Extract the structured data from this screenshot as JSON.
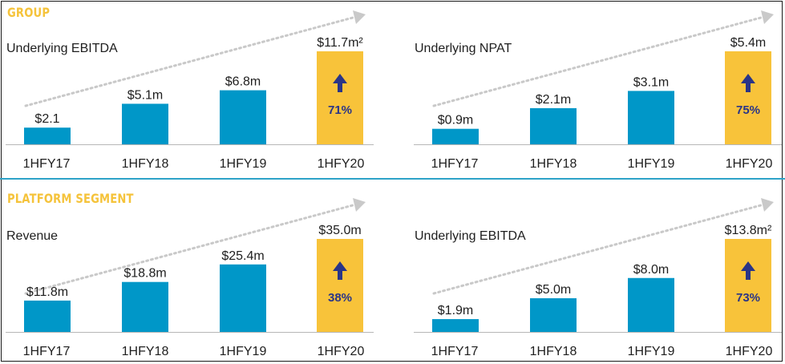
{
  "colors": {
    "bar": "#0097c8",
    "highlight": "#f8c33a",
    "arrow": "#2a3587",
    "section": "#f5c33b",
    "divider": "#2ea3c8",
    "baseline": "#b7b7b7",
    "dotted": "#c9c9c9",
    "text": "#1e1e1e"
  },
  "sections": [
    {
      "label": "GROUP"
    },
    {
      "label": "PLATFORM SEGMENT"
    }
  ],
  "chart_data": [
    {
      "type": "bar",
      "title": "Underlying EBITDA",
      "categories": [
        "1HFY17",
        "1HFY18",
        "1HFY19",
        "1HFY20"
      ],
      "values": [
        2.1,
        5.1,
        6.8,
        11.7
      ],
      "value_labels": [
        "$2.1",
        "$5.1m",
        "$6.8m",
        "$11.7m²"
      ],
      "highlight_index": 3,
      "growth_label": "71%"
    },
    {
      "type": "bar",
      "title": "Underlying NPAT",
      "categories": [
        "1HFY17",
        "1HFY18",
        "1HFY19",
        "1HFY20"
      ],
      "values": [
        0.9,
        2.1,
        3.1,
        5.4
      ],
      "value_labels": [
        "$0.9m",
        "$2.1m",
        "$3.1m",
        "$5.4m"
      ],
      "highlight_index": 3,
      "growth_label": "75%"
    },
    {
      "type": "bar",
      "title": "Revenue",
      "categories": [
        "1HFY17",
        "1HFY18",
        "1HFY19",
        "1HFY20"
      ],
      "values": [
        11.8,
        18.8,
        25.4,
        35.0
      ],
      "value_labels": [
        "$11.8m",
        "$18.8m",
        "$25.4m",
        "$35.0m"
      ],
      "highlight_index": 3,
      "growth_label": "38%"
    },
    {
      "type": "bar",
      "title": "Underlying EBITDA",
      "categories": [
        "1HFY17",
        "1HFY18",
        "1HFY19",
        "1HFY20"
      ],
      "values": [
        1.9,
        5.0,
        8.0,
        13.8
      ],
      "value_labels": [
        "$1.9m",
        "$5.0m",
        "$8.0m",
        "$13.8m²"
      ],
      "highlight_index": 3,
      "growth_label": "73%"
    }
  ]
}
